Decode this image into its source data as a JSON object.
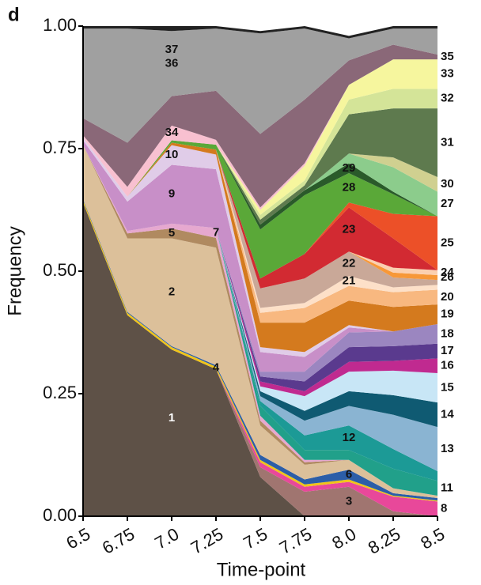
{
  "chart_data": {
    "type": "stacked_area",
    "panel": "d",
    "xlabel": "Time-point",
    "ylabel": "Frequency",
    "x": [
      6.5,
      6.75,
      7.0,
      7.25,
      7.5,
      7.75,
      8.0,
      8.25,
      8.5
    ],
    "xlim": [
      6.5,
      8.5
    ],
    "xticks": [
      6.5,
      6.75,
      {
        "value": 7.0,
        "label": "7.0"
      },
      7.25,
      7.5,
      7.75,
      {
        "value": 8.0,
        "label": "8.0"
      },
      8.25,
      8.5
    ],
    "ylim": [
      0,
      1
    ],
    "yticks": [
      {
        "value": 0,
        "label": "0.00"
      },
      {
        "value": 0.25,
        "label": "0.25"
      },
      {
        "value": 0.5,
        "label": "0.50"
      },
      {
        "value": 0.75,
        "label": "0.75"
      },
      {
        "value": 1.0,
        "label": "1.00"
      }
    ],
    "series": [
      {
        "name": "1",
        "color": "#5e5147",
        "values": [
          0.64,
          0.41,
          0.34,
          0.3,
          0.08,
          0,
          0,
          0,
          0
        ]
      },
      {
        "name": "3",
        "color": "#a07570",
        "values": [
          0,
          0,
          0,
          0,
          0.02,
          0.05,
          0.06,
          0.01,
          0
        ]
      },
      {
        "name": "8",
        "color": "#e8489a",
        "values": [
          0,
          0,
          0,
          0,
          0.01,
          0.01,
          0.01,
          0.03,
          0.03
        ]
      },
      {
        "name": "4",
        "color": "#f0c419",
        "values": [
          0.005,
          0.005,
          0.005,
          0.005,
          0.005,
          0.005,
          0.005,
          0.002,
          0.002
        ]
      },
      {
        "name": "6",
        "color": "#2c5ea8",
        "values": [
          0.002,
          0.002,
          0.002,
          0.003,
          0.01,
          0.01,
          0.02,
          0.005,
          0.005
        ]
      },
      {
        "name": "2",
        "color": "#dcc09a",
        "values": [
          0.11,
          0.15,
          0.22,
          0.24,
          0.06,
          0.03,
          0.02,
          0.01,
          0.005
        ]
      },
      {
        "name": "5",
        "color": "#b08a60",
        "values": [
          0,
          0.01,
          0.02,
          0.02,
          0.01,
          0.005,
          0,
          0,
          0
        ]
      },
      {
        "name": "7",
        "color": "#e6a8cf",
        "values": [
          0,
          0.005,
          0.01,
          0.02,
          0.01,
          0.005,
          0,
          0,
          0
        ]
      },
      {
        "name": "11",
        "color": "#21a08a",
        "values": [
          0,
          0,
          0,
          0,
          0.02,
          0.02,
          0.02,
          0.04,
          0.03
        ]
      },
      {
        "name": "12",
        "color": "#1c9a96",
        "values": [
          0,
          0,
          0,
          0,
          0.01,
          0.03,
          0.05,
          0.04,
          0.02
        ]
      },
      {
        "name": "13",
        "color": "#8ab4d2",
        "values": [
          0,
          0,
          0,
          0,
          0.01,
          0.03,
          0.04,
          0.07,
          0.09
        ]
      },
      {
        "name": "14",
        "color": "#0f5a72",
        "values": [
          0,
          0,
          0,
          0,
          0.01,
          0.02,
          0.03,
          0.04,
          0.05
        ]
      },
      {
        "name": "15",
        "color": "#c8e6f6",
        "values": [
          0,
          0,
          0,
          0,
          0.01,
          0.03,
          0.04,
          0.05,
          0.06
        ]
      },
      {
        "name": "16",
        "color": "#c02a90",
        "values": [
          0,
          0,
          0,
          0,
          0.01,
          0.01,
          0.02,
          0.02,
          0.03
        ]
      },
      {
        "name": "17",
        "color": "#5a3a8e",
        "values": [
          0,
          0,
          0,
          0,
          0.01,
          0.02,
          0.03,
          0.03,
          0.03
        ]
      },
      {
        "name": "18",
        "color": "#9b86c0",
        "values": [
          0,
          0,
          0,
          0,
          0.01,
          0.02,
          0.03,
          0.03,
          0.04
        ]
      },
      {
        "name": "9",
        "color": "#c88fc8",
        "values": [
          0.01,
          0.06,
          0.12,
          0.12,
          0.04,
          0.03,
          0.01,
          0,
          0
        ]
      },
      {
        "name": "10",
        "color": "#e0cce8",
        "values": [
          0.005,
          0.01,
          0.04,
          0.03,
          0.01,
          0.01,
          0.005,
          0,
          0
        ]
      },
      {
        "name": "19",
        "color": "#d47a1e",
        "values": [
          0,
          0,
          0.005,
          0.01,
          0.05,
          0.06,
          0.05,
          0.05,
          0.04
        ]
      },
      {
        "name": "20",
        "color": "#f8b880",
        "values": [
          0,
          0,
          0,
          0,
          0.02,
          0.03,
          0.03,
          0.03,
          0.03
        ]
      },
      {
        "name": "21",
        "color": "#fde0c8",
        "values": [
          0,
          0,
          0,
          0,
          0.01,
          0.01,
          0.02,
          0.01,
          0.01
        ]
      },
      {
        "name": "22",
        "color": "#c9a898",
        "values": [
          0,
          0,
          0,
          0,
          0.04,
          0.05,
          0.05,
          0.02,
          0.01
        ]
      },
      {
        "name": "26",
        "color": "#f79838",
        "values": [
          0,
          0,
          0,
          0,
          0,
          0,
          0,
          0.01,
          0.01
        ]
      },
      {
        "name": "24",
        "color": "#fbd0b0",
        "values": [
          0,
          0,
          0,
          0,
          0,
          0,
          0,
          0.01,
          0.01
        ]
      },
      {
        "name": "23",
        "color": "#d22a32",
        "values": [
          0,
          0,
          0,
          0,
          0.02,
          0.05,
          0.09,
          0.06,
          0.0
        ]
      },
      {
        "name": "25",
        "color": "#ec5028",
        "values": [
          0,
          0,
          0,
          0,
          0,
          0,
          0.01,
          0.05,
          0.11
        ]
      },
      {
        "name": "28",
        "color": "#5aa838",
        "values": [
          0,
          0,
          0.005,
          0.01,
          0.1,
          0.12,
          0.06,
          0.04,
          0
        ]
      },
      {
        "name": "29",
        "color": "#2a5a2a",
        "values": [
          0,
          0,
          0,
          0,
          0.01,
          0.01,
          0.02,
          0.005,
          0
        ]
      },
      {
        "name": "27",
        "color": "#8ccc8c",
        "values": [
          0,
          0,
          0,
          0,
          0,
          0,
          0.02,
          0.05,
          0.05
        ]
      },
      {
        "name": "30",
        "color": "#d0d090",
        "values": [
          0,
          0,
          0,
          0,
          0,
          0,
          0,
          0.02,
          0.03
        ]
      },
      {
        "name": "31",
        "color": "#5e7a4e",
        "values": [
          0,
          0,
          0,
          0,
          0.01,
          0.01,
          0.08,
          0.1,
          0.14
        ]
      },
      {
        "name": "32",
        "color": "#d4e498",
        "values": [
          0,
          0,
          0,
          0,
          0.01,
          0.01,
          0.03,
          0.04,
          0.04
        ]
      },
      {
        "name": "33",
        "color": "#f6f69e",
        "values": [
          0,
          0,
          0,
          0,
          0.01,
          0.03,
          0.03,
          0.06,
          0.06
        ]
      },
      {
        "name": "34",
        "color": "#f8c0d0",
        "values": [
          0.005,
          0.02,
          0.03,
          0.01,
          0.005,
          0.005,
          0,
          0,
          0
        ]
      },
      {
        "name": "35",
        "color": "#8a6878",
        "values": [
          0.035,
          0.09,
          0.06,
          0.1,
          0.15,
          0.13,
          0.05,
          0.03,
          0.01
        ]
      },
      {
        "name": "36",
        "color": "#a0a0a0",
        "values": [
          0.183,
          0.233,
          0.133,
          0.127,
          0.205,
          0.145,
          0.045,
          0.033,
          0.053
        ]
      },
      {
        "name": "37",
        "color": "#222222",
        "values": [
          0.005,
          0.005,
          0.01,
          0.005,
          0.005,
          0.005,
          0.005,
          0.005,
          0.005
        ]
      }
    ]
  }
}
